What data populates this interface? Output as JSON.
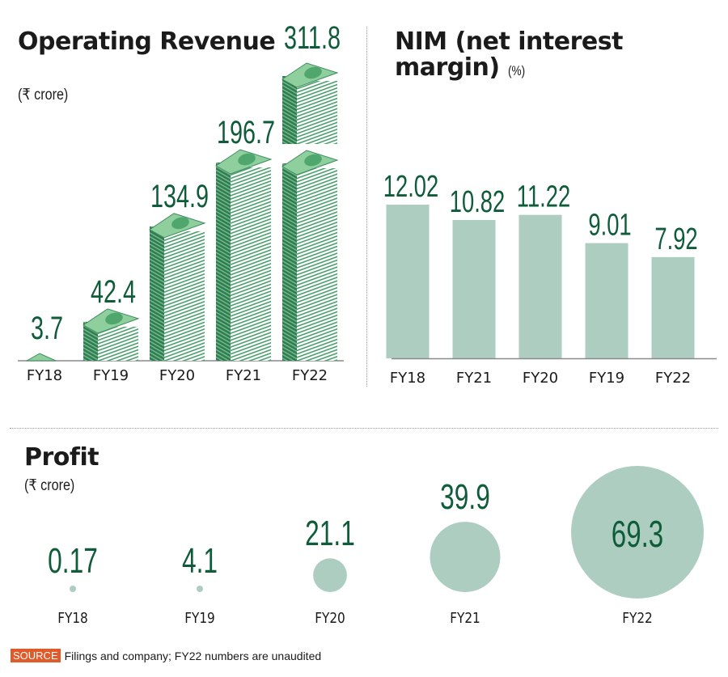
{
  "colors": {
    "value_text": "#0f5c3a",
    "bar_fill": "#adcdc0",
    "stack_front": "#ffffff",
    "stack_line": "#4a9e6c",
    "stack_side": "#3f8d5e",
    "stack_top": "#8fcf9e",
    "stack_coin": "#4fa76d",
    "axis": "#8a8a8a",
    "source_tag": "#e05a2a"
  },
  "source": {
    "tag": "SOURCE",
    "text": "Filings and company; FY22 numbers are unaudited"
  },
  "chart_data": [
    {
      "type": "bar",
      "title": "Operating Revenue",
      "unit": "(₹ crore)",
      "categories": [
        "FY18",
        "FY19",
        "FY20",
        "FY21",
        "FY22"
      ],
      "values": [
        3.7,
        42.4,
        134.9,
        196.7,
        311.8
      ],
      "value_labels": [
        "3.7",
        "42.4",
        "134.9",
        "196.7",
        "311.8"
      ],
      "xlabel": "",
      "ylabel": "",
      "ylim": [
        0,
        311.8
      ],
      "grid": false,
      "style": "money-stack pictogram; FY22 shown as two stacked bundles (broken scale)"
    },
    {
      "type": "bar",
      "title": "NIM (net interest margin)",
      "unit": "(%)",
      "categories": [
        "FY18",
        "FY21",
        "FY20",
        "FY19",
        "FY22"
      ],
      "values": [
        12.02,
        10.82,
        11.22,
        9.01,
        7.92
      ],
      "value_labels": [
        "12.02",
        "10.82",
        "11.22",
        "9.01",
        "7.92"
      ],
      "xlabel": "",
      "ylabel": "",
      "ylim": [
        0,
        12.02
      ],
      "grid": false
    },
    {
      "type": "scatter",
      "subtype": "bubble",
      "title": "Profit",
      "unit": "(₹ crore)",
      "categories": [
        "FY18",
        "FY19",
        "FY20",
        "FY21",
        "FY22"
      ],
      "values": [
        0.17,
        4.1,
        21.1,
        39.9,
        69.3
      ],
      "value_labels": [
        "0.17",
        "4.1",
        "21.1",
        "39.9",
        "69.3"
      ],
      "grid": false
    }
  ]
}
